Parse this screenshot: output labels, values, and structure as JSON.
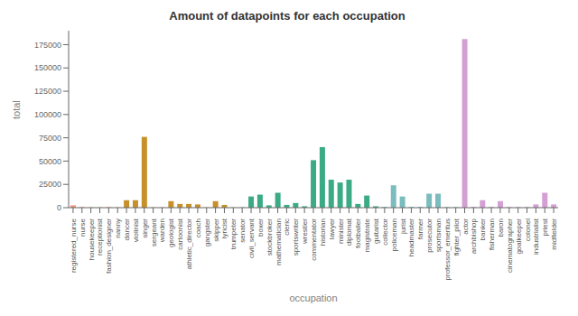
{
  "chart_data": {
    "type": "bar",
    "title": "Amount of datapoints for each occupation",
    "xlabel": "occupation",
    "ylabel": "total",
    "categories": [
      "registered_nurse",
      "nurse",
      "housekeeper",
      "receptionist",
      "fashion_designer",
      "nanny",
      "dancer",
      "violinist",
      "singer",
      "sergeant",
      "warden",
      "geologist",
      "cartoonist",
      "athletic_director",
      "coach",
      "gangster",
      "skipper",
      "lyricist",
      "trumpeter",
      "senator",
      "civil_servant",
      "boxer",
      "stockbroker",
      "mathematician",
      "cleric",
      "sportswriter",
      "wrestler",
      "commentator",
      "historian",
      "lawyer",
      "minister",
      "diplomat",
      "footballer",
      "magistrate",
      "guitarist",
      "collector",
      "policeman",
      "jurist",
      "headmaster",
      "farmer",
      "prosecutor",
      "sportsman",
      "professor_emeritus",
      "fighter_pilot",
      "actor",
      "archbishop",
      "banker",
      "fisherman",
      "baron",
      "cinematographer",
      "goalkeeper",
      "colonel",
      "industrialist",
      "priest",
      "midfielder"
    ],
    "values": [
      2500,
      500,
      200,
      200,
      500,
      200,
      8000,
      8000,
      76000,
      200,
      200,
      7000,
      4000,
      4000,
      3500,
      200,
      7000,
      3000,
      200,
      200,
      12000,
      14000,
      2500,
      16000,
      3000,
      5000,
      1500,
      51000,
      65000,
      30000,
      27000,
      30000,
      4000,
      13000,
      1500,
      700,
      24000,
      12000,
      700,
      700,
      15000,
      15000,
      500,
      500,
      181000,
      700,
      8000,
      700,
      7000,
      500,
      500,
      500,
      3500,
      16000,
      3500
    ],
    "colors": [
      "#f4927a",
      "#f4927a",
      "#f4927a",
      "#f4927a",
      "#f4927a",
      "#f4927a",
      "#c8902a",
      "#c8902a",
      "#c8902a",
      "#c8902a",
      "#c8902a",
      "#c8902a",
      "#c8902a",
      "#c8902a",
      "#c8902a",
      "#c8902a",
      "#c8902a",
      "#c8902a",
      "#c8902a",
      "#3aab84",
      "#3aab84",
      "#3aab84",
      "#3aab84",
      "#3aab84",
      "#3aab84",
      "#3aab84",
      "#3aab84",
      "#3aab84",
      "#3aab84",
      "#3aab84",
      "#3aab84",
      "#3aab84",
      "#3aab84",
      "#3aab84",
      "#3aab84",
      "#7bbcbe",
      "#7bbcbe",
      "#7bbcbe",
      "#7bbcbe",
      "#7bbcbe",
      "#7bbcbe",
      "#7bbcbe",
      "#7bbcbe",
      "#7bbcbe",
      "#d4a0d4",
      "#d4a0d4",
      "#d4a0d4",
      "#d4a0d4",
      "#d4a0d4",
      "#d4a0d4",
      "#d4a0d4",
      "#d4a0d4",
      "#d4a0d4",
      "#d4a0d4",
      "#d4a0d4"
    ],
    "ylim": [
      0,
      190000
    ],
    "yticks": [
      0,
      25000,
      50000,
      75000,
      100000,
      125000,
      150000,
      175000
    ],
    "grid": false
  }
}
